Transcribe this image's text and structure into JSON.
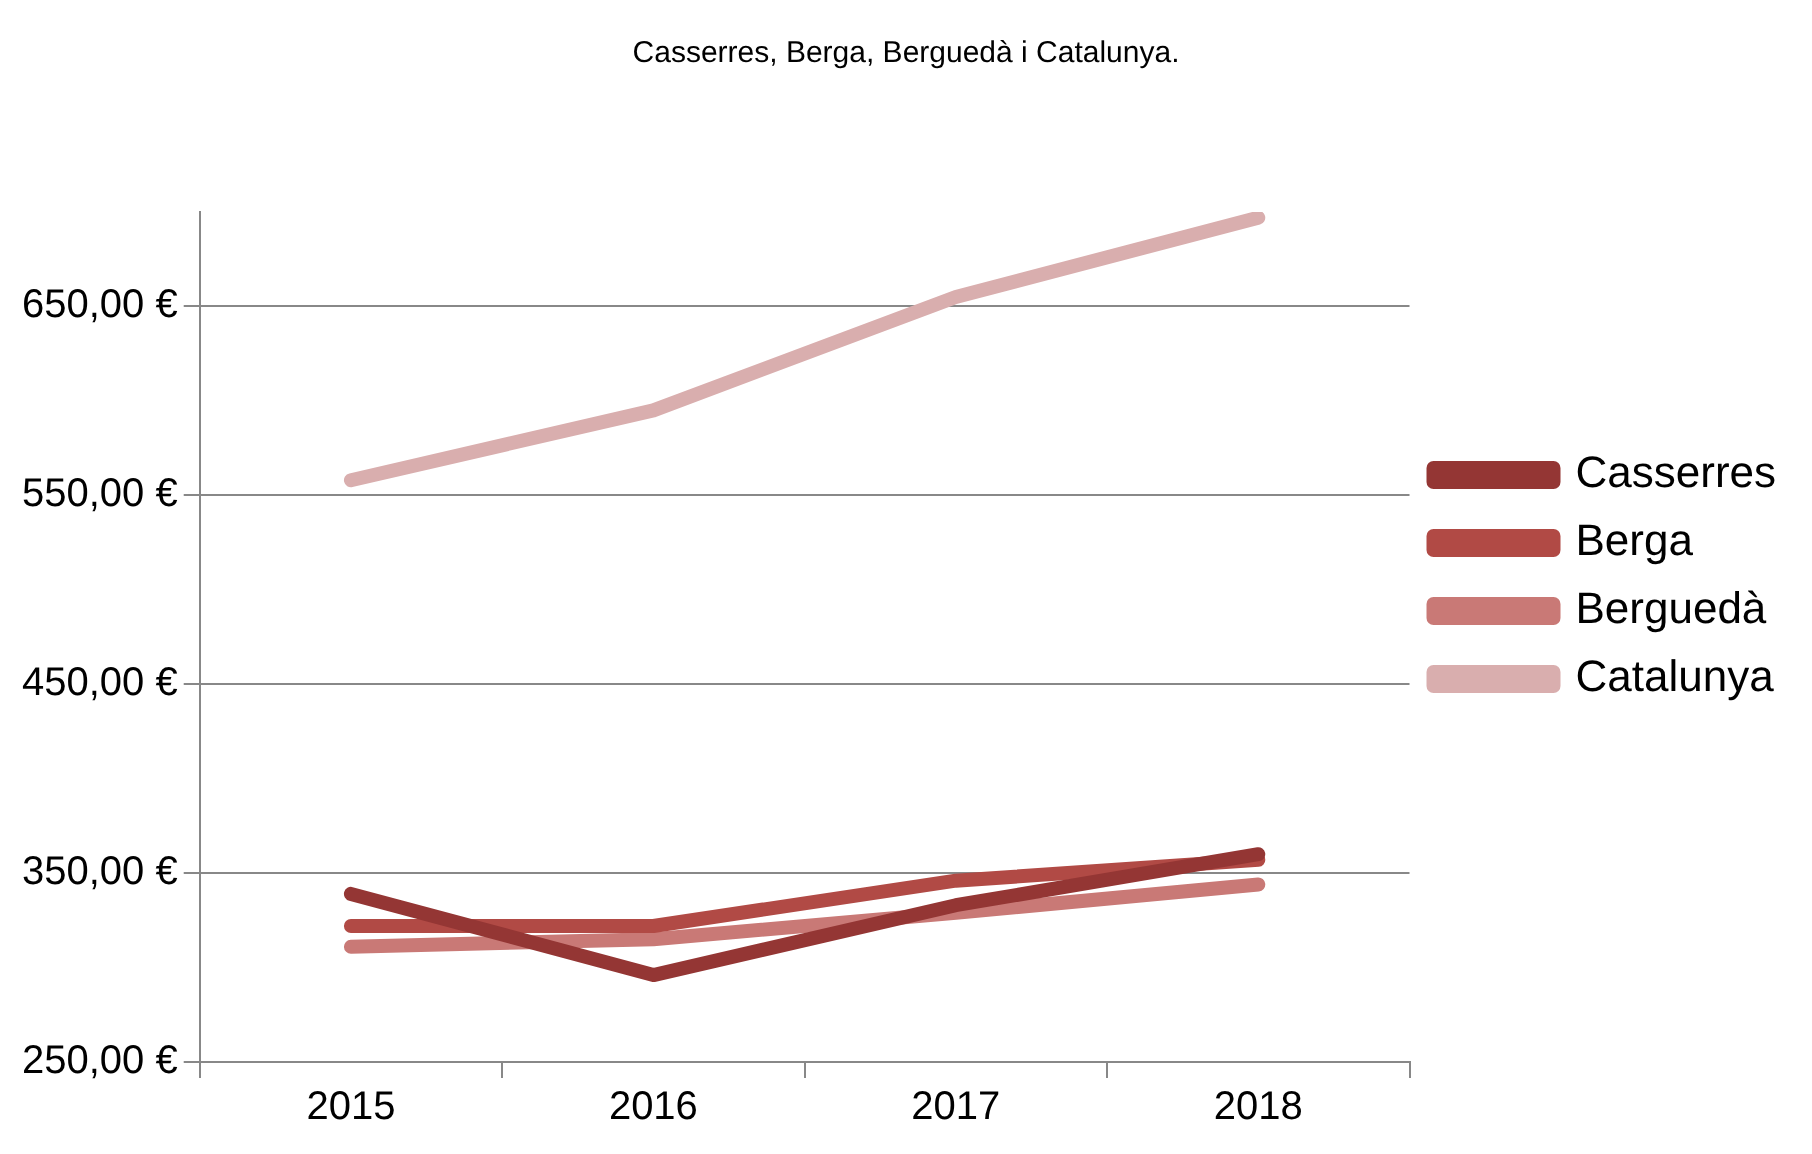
{
  "chart_data": {
    "type": "line",
    "title": "Casserres, Berga, Berguedà i Catalunya.",
    "categories": [
      "2015",
      "2016",
      "2017",
      "2018"
    ],
    "series": [
      {
        "name": "Casserres",
        "color": "#943634",
        "values": [
          339,
          296,
          333,
          360
        ]
      },
      {
        "name": "Berga",
        "color": "#b14a45",
        "values": [
          322,
          322,
          346,
          357
        ]
      },
      {
        "name": "Berguedà",
        "color": "#c97976",
        "values": [
          311,
          315,
          329,
          344
        ]
      },
      {
        "name": "Catalunya",
        "color": "#d9aeae",
        "values": [
          558,
          595,
          655,
          697
        ]
      }
    ],
    "ylim": [
      250,
      700
    ],
    "yticks": [
      {
        "value": 250,
        "label": "250,00 €"
      },
      {
        "value": 350,
        "label": "350,00 €"
      },
      {
        "value": 450,
        "label": "450,00 €"
      },
      {
        "value": 550,
        "label": "550,00 €"
      },
      {
        "value": 650,
        "label": "650,00 €"
      }
    ],
    "grid": "y",
    "legend": "right",
    "marker": "none",
    "line_style": "solid"
  }
}
